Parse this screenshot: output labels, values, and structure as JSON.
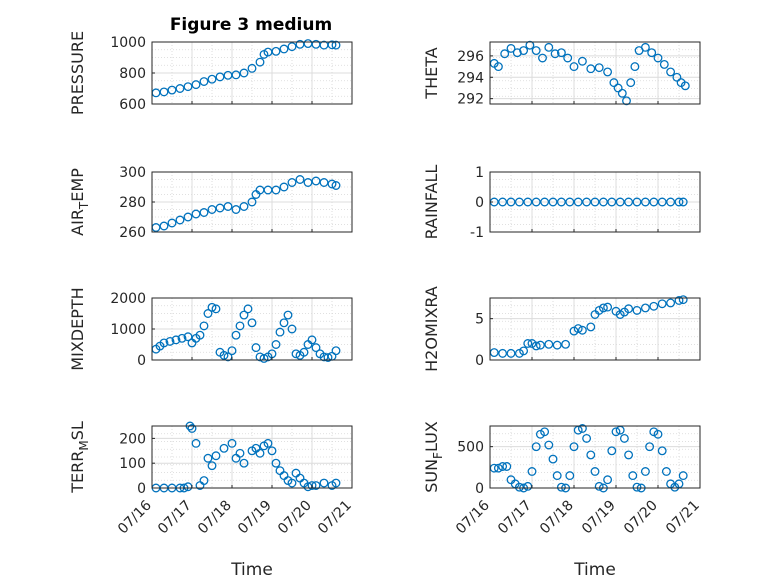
{
  "figure": {
    "title": "Figure 3 medium",
    "marker_color": "#0072bd"
  },
  "chart_data": [
    {
      "type": "scatter",
      "ylabel": "PRESSURE",
      "title": "Figure 3 medium",
      "ylim": [
        600,
        1000
      ],
      "yticks": [
        "600",
        "800",
        "1000"
      ],
      "xlim": [
        0,
        5
      ],
      "xticks": [],
      "grid": true,
      "minor_grid": true,
      "series": [
        {
          "x": [
            0.1,
            0.3,
            0.5,
            0.7,
            0.9,
            1.1,
            1.3,
            1.5,
            1.7,
            1.9,
            2.1,
            2.3,
            2.5,
            2.7,
            2.8,
            2.9,
            3.1,
            3.3,
            3.5,
            3.7,
            3.9,
            4.1,
            4.3,
            4.5,
            4.6
          ],
          "y": [
            672,
            678,
            690,
            700,
            712,
            725,
            745,
            760,
            775,
            785,
            788,
            800,
            830,
            870,
            920,
            935,
            940,
            955,
            970,
            985,
            990,
            985,
            980,
            982,
            980
          ]
        }
      ]
    },
    {
      "type": "scatter",
      "ylabel": "THETA",
      "ylim": [
        291.5,
        297.3
      ],
      "yticks": [
        "292",
        "294",
        "296"
      ],
      "xlim": [
        0,
        5
      ],
      "xticks": [],
      "grid": true,
      "minor_grid": true,
      "series": [
        {
          "x": [
            0.1,
            0.2,
            0.35,
            0.5,
            0.65,
            0.8,
            0.95,
            1.1,
            1.25,
            1.4,
            1.55,
            1.7,
            1.85,
            2.0,
            2.2,
            2.4,
            2.6,
            2.8,
            2.95,
            3.05,
            3.15,
            3.25,
            3.35,
            3.45,
            3.55,
            3.7,
            3.85,
            4.0,
            4.15,
            4.3,
            4.45,
            4.55,
            4.65
          ],
          "y": [
            295.3,
            295.0,
            296.2,
            296.7,
            296.3,
            296.5,
            297.0,
            296.5,
            295.8,
            296.8,
            296.2,
            296.3,
            295.8,
            295.0,
            295.5,
            294.8,
            294.9,
            294.5,
            293.5,
            293.0,
            292.5,
            291.8,
            293.5,
            295.0,
            296.5,
            296.8,
            296.3,
            295.8,
            295.2,
            294.5,
            294.0,
            293.5,
            293.2
          ]
        }
      ]
    },
    {
      "type": "scatter",
      "ylabel": "AIR_TEMP",
      "ylabel_subscript": "T",
      "ylim": [
        260,
        300
      ],
      "yticks": [
        "260",
        "280",
        "300"
      ],
      "xlim": [
        0,
        5
      ],
      "xticks": [],
      "grid": true,
      "minor_grid": true,
      "series": [
        {
          "x": [
            0.1,
            0.3,
            0.5,
            0.7,
            0.9,
            1.1,
            1.3,
            1.5,
            1.7,
            1.9,
            2.1,
            2.3,
            2.5,
            2.6,
            2.7,
            2.9,
            3.1,
            3.3,
            3.5,
            3.7,
            3.9,
            4.1,
            4.3,
            4.5,
            4.6
          ],
          "y": [
            263,
            264,
            266,
            268,
            270,
            272,
            273,
            275,
            276,
            277,
            275,
            277,
            280,
            285,
            288,
            288,
            288,
            290,
            293,
            295,
            293,
            294,
            293,
            292,
            291
          ]
        }
      ]
    },
    {
      "type": "scatter",
      "ylabel": "RAINFALL",
      "ylim": [
        -1,
        1
      ],
      "yticks": [
        "-1",
        "0",
        "1"
      ],
      "xlim": [
        0,
        5
      ],
      "xticks": [],
      "grid": true,
      "minor_grid": true,
      "series": [
        {
          "x": [
            0.1,
            0.3,
            0.5,
            0.7,
            0.9,
            1.1,
            1.3,
            1.5,
            1.7,
            1.9,
            2.1,
            2.3,
            2.5,
            2.7,
            2.9,
            3.1,
            3.3,
            3.5,
            3.7,
            3.9,
            4.1,
            4.3,
            4.5,
            4.6
          ],
          "y": [
            0,
            0,
            0,
            0,
            0,
            0,
            0,
            0,
            0,
            0,
            0,
            0,
            0,
            0,
            0,
            0,
            0,
            0,
            0,
            0,
            0,
            0,
            0,
            0
          ]
        }
      ]
    },
    {
      "type": "scatter",
      "ylabel": "MIXDEPTH",
      "ylim": [
        0,
        2000
      ],
      "yticks": [
        "0",
        "1000",
        "2000"
      ],
      "xlim": [
        0,
        5
      ],
      "xticks": [],
      "grid": true,
      "minor_grid": true,
      "series": [
        {
          "x": [
            0.1,
            0.2,
            0.3,
            0.45,
            0.6,
            0.75,
            0.9,
            1.0,
            1.1,
            1.2,
            1.3,
            1.4,
            1.5,
            1.6,
            1.7,
            1.8,
            1.9,
            2.0,
            2.1,
            2.2,
            2.3,
            2.4,
            2.5,
            2.6,
            2.7,
            2.8,
            2.9,
            3.0,
            3.1,
            3.2,
            3.3,
            3.4,
            3.5,
            3.6,
            3.7,
            3.8,
            3.9,
            4.0,
            4.1,
            4.2,
            4.3,
            4.4,
            4.5,
            4.6
          ],
          "y": [
            350,
            450,
            550,
            600,
            650,
            700,
            750,
            550,
            700,
            800,
            1100,
            1500,
            1700,
            1650,
            250,
            150,
            100,
            300,
            800,
            1100,
            1450,
            1650,
            1200,
            400,
            100,
            50,
            100,
            200,
            500,
            900,
            1200,
            1450,
            1000,
            200,
            150,
            250,
            500,
            650,
            400,
            200,
            100,
            80,
            120,
            300
          ]
        }
      ]
    },
    {
      "type": "scatter",
      "ylabel": "H2OMIXRA",
      "ylim": [
        0,
        7.5
      ],
      "yticks": [
        "0",
        "5"
      ],
      "xlim": [
        0,
        5
      ],
      "xticks": [],
      "grid": true,
      "minor_grid": true,
      "series": [
        {
          "x": [
            0.1,
            0.3,
            0.5,
            0.7,
            0.8,
            0.9,
            1.0,
            1.1,
            1.2,
            1.4,
            1.6,
            1.8,
            2.0,
            2.1,
            2.2,
            2.4,
            2.5,
            2.6,
            2.7,
            2.8,
            3.0,
            3.1,
            3.2,
            3.3,
            3.5,
            3.7,
            3.9,
            4.1,
            4.3,
            4.5,
            4.6
          ],
          "y": [
            0.9,
            0.8,
            0.8,
            0.8,
            1.1,
            2.0,
            2.0,
            1.7,
            1.8,
            1.9,
            1.8,
            1.9,
            3.5,
            3.8,
            3.6,
            4.0,
            5.5,
            6.0,
            6.3,
            6.4,
            5.9,
            5.5,
            5.8,
            6.2,
            6.0,
            6.3,
            6.5,
            6.8,
            6.9,
            7.2,
            7.3
          ]
        }
      ]
    },
    {
      "type": "scatter",
      "ylabel": "TERR_MSL",
      "ylabel_subscript": "M",
      "ylim": [
        0,
        250
      ],
      "yticks": [
        "0",
        "100",
        "200"
      ],
      "xlim": [
        0,
        5
      ],
      "xticks": [
        "07/16",
        "07/17",
        "07/18",
        "07/19",
        "07/20",
        "07/21"
      ],
      "xlabel": "Time",
      "grid": true,
      "minor_grid": true,
      "series": [
        {
          "x": [
            0.1,
            0.3,
            0.5,
            0.7,
            0.8,
            0.9,
            0.95,
            1.0,
            1.1,
            1.2,
            1.3,
            1.4,
            1.5,
            1.6,
            1.8,
            2.0,
            2.1,
            2.2,
            2.3,
            2.5,
            2.6,
            2.7,
            2.8,
            2.9,
            3.0,
            3.1,
            3.2,
            3.3,
            3.4,
            3.5,
            3.6,
            3.7,
            3.8,
            3.9,
            4.0,
            4.1,
            4.3,
            4.5,
            4.6
          ],
          "y": [
            0,
            0,
            0,
            0,
            0,
            5,
            250,
            240,
            180,
            10,
            30,
            120,
            90,
            130,
            160,
            180,
            120,
            140,
            100,
            150,
            160,
            140,
            170,
            180,
            150,
            100,
            70,
            50,
            30,
            20,
            60,
            40,
            20,
            5,
            10,
            10,
            20,
            10,
            20
          ]
        }
      ]
    },
    {
      "type": "scatter",
      "ylabel": "SUN_FLUX",
      "ylabel_subscript": "F",
      "ylim": [
        0,
        750
      ],
      "yticks": [
        "0",
        "500"
      ],
      "xlim": [
        0,
        5
      ],
      "xticks": [
        "07/16",
        "07/17",
        "07/18",
        "07/19",
        "07/20",
        "07/21"
      ],
      "xlabel": "Time",
      "grid": true,
      "minor_grid": true,
      "series": [
        {
          "x": [
            0.1,
            0.2,
            0.3,
            0.4,
            0.5,
            0.6,
            0.7,
            0.8,
            0.9,
            1.0,
            1.1,
            1.2,
            1.3,
            1.4,
            1.5,
            1.6,
            1.7,
            1.8,
            1.9,
            2.0,
            2.1,
            2.2,
            2.3,
            2.4,
            2.5,
            2.6,
            2.7,
            2.8,
            2.9,
            3.0,
            3.1,
            3.2,
            3.3,
            3.4,
            3.5,
            3.6,
            3.7,
            3.8,
            3.9,
            4.0,
            4.1,
            4.2,
            4.3,
            4.4,
            4.5,
            4.6
          ],
          "y": [
            240,
            240,
            260,
            260,
            100,
            50,
            10,
            0,
            20,
            200,
            500,
            650,
            680,
            520,
            350,
            150,
            10,
            0,
            150,
            500,
            700,
            720,
            600,
            400,
            200,
            20,
            0,
            100,
            450,
            680,
            700,
            600,
            400,
            150,
            10,
            0,
            200,
            500,
            680,
            650,
            450,
            200,
            50,
            10,
            50,
            150
          ]
        }
      ]
    }
  ]
}
